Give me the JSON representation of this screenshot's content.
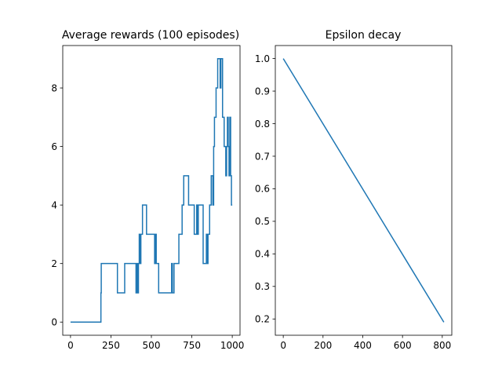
{
  "chart_data": [
    {
      "type": "line",
      "title": "Average rewards (100 episodes)",
      "xlabel": "",
      "ylabel": "",
      "xlim": [
        -48,
        1048
      ],
      "ylim": [
        -0.45,
        9.45
      ],
      "xticks": [
        0,
        250,
        500,
        750,
        1000
      ],
      "yticks": [
        0,
        2,
        4,
        6,
        8
      ],
      "grid": false,
      "line_color": "#1f77b4",
      "series": [
        {
          "step": true,
          "x": [
            0,
            188,
            190,
            192,
            290,
            330,
            335,
            400,
            405,
            410,
            415,
            420,
            425,
            430,
            435,
            440,
            445,
            460,
            465,
            470,
            510,
            515,
            520,
            525,
            530,
            535,
            540,
            545,
            560,
            585,
            625,
            630,
            640,
            670,
            690,
            700,
            730,
            760,
            765,
            780,
            785,
            790,
            820,
            830,
            840,
            845,
            850,
            855,
            860,
            870,
            880,
            885,
            890,
            900,
            910,
            915,
            920,
            925,
            930,
            940,
            945,
            950,
            955,
            960,
            965,
            970,
            975,
            980,
            985,
            990,
            995,
            1000
          ],
          "y": [
            0,
            1,
            2,
            2,
            1,
            1,
            2,
            2,
            1,
            2,
            1,
            2,
            3,
            2,
            3,
            3,
            4,
            4,
            4,
            3,
            3,
            3,
            2,
            3,
            2,
            2,
            2,
            1,
            1,
            1,
            2,
            1,
            2,
            3,
            4,
            5,
            4,
            4,
            3,
            4,
            3,
            4,
            2,
            2,
            3,
            2,
            3,
            3,
            4,
            5,
            4,
            6,
            7,
            8,
            9,
            9,
            9,
            8,
            9,
            7,
            7,
            6,
            6,
            5,
            6,
            7,
            6,
            5,
            7,
            5,
            4,
            4
          ]
        }
      ]
    },
    {
      "type": "line",
      "title": "Epsilon decay",
      "xlabel": "",
      "ylabel": "",
      "xlim": [
        -40,
        848
      ],
      "ylim": [
        0.15,
        1.04
      ],
      "xticks": [
        0,
        200,
        400,
        600,
        800
      ],
      "yticks": [
        0.2,
        0.3,
        0.4,
        0.5,
        0.6,
        0.7,
        0.8,
        0.9,
        1.0
      ],
      "ytick_labels": [
        "0.2",
        "0.3",
        "0.4",
        "0.5",
        "0.6",
        "0.7",
        "0.8",
        "0.9",
        "1.0"
      ],
      "grid": false,
      "line_color": "#1f77b4",
      "series": [
        {
          "x": [
            0,
            808
          ],
          "y": [
            1.0,
            0.19
          ]
        }
      ]
    }
  ]
}
